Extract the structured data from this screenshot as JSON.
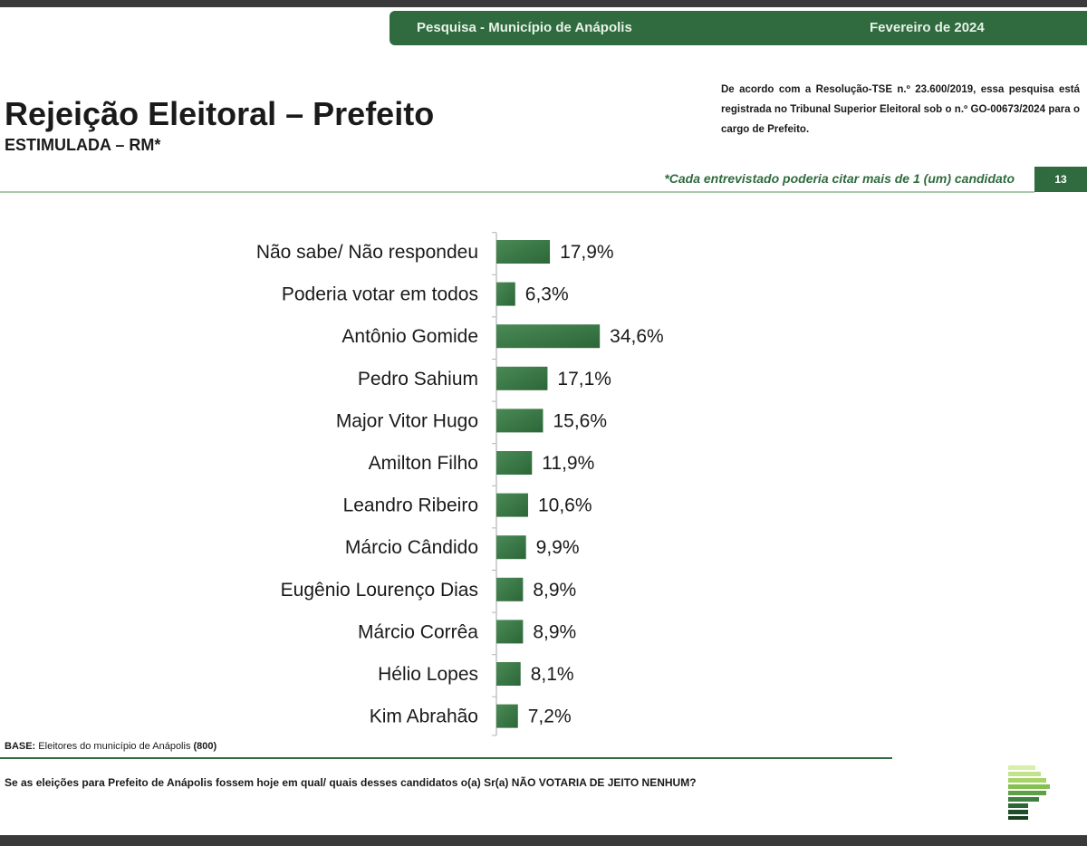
{
  "header": {
    "left": "Pesquisa - Município de Anápolis",
    "right": "Fevereiro de 2024"
  },
  "title": "Rejeição Eleitoral – Prefeito",
  "subtitle": "ESTIMULADA – RM*",
  "legal_text": "De acordo com a Resolução-TSE n.º 23.600/2019, essa pesquisa está registrada no Tribunal Superior Eleitoral sob o n.º GO-00673/2024 para o cargo de Prefeito.",
  "note": "*Cada entrevistado poderia citar mais de 1 (um) candidato",
  "page_number": "13",
  "base": {
    "label": "BASE:",
    "text": " Eleitores do município de Anápolis ",
    "count": "(800)"
  },
  "question": "Se as eleições para Prefeito de Anápolis fossem hoje em qual/ quais desses candidatos o(a) Sr(a) NÃO VOTARIA DE JEITO NENHUM?",
  "colors": {
    "brand_green": "#2f6b3e",
    "bar_green": "#3d7a4a"
  },
  "chart_data": {
    "type": "bar",
    "orientation": "horizontal",
    "categories": [
      "Não sabe/ Não respondeu",
      "Poderia votar em todos",
      "Antônio Gomide",
      "Pedro Sahium",
      "Major Vitor Hugo",
      "Amilton Filho",
      "Leandro Ribeiro",
      "Márcio Cândido",
      "Eugênio Lourenço Dias",
      "Márcio Corrêa",
      "Hélio Lopes",
      "Kim Abrahão"
    ],
    "values": [
      17.9,
      6.3,
      34.6,
      17.1,
      15.6,
      11.9,
      10.6,
      9.9,
      8.9,
      8.9,
      8.1,
      7.2
    ],
    "value_labels": [
      "17,9%",
      "6,3%",
      "34,6%",
      "17,1%",
      "15,6%",
      "11,9%",
      "10,6%",
      "9,9%",
      "8,9%",
      "8,9%",
      "8,1%",
      "7,2%"
    ],
    "xlim": [
      0,
      100
    ],
    "grid": false
  }
}
